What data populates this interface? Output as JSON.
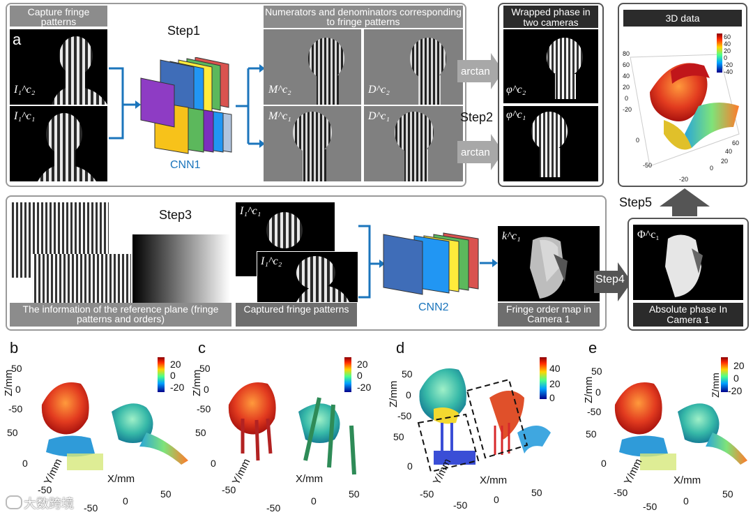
{
  "top": {
    "panel_letter": "a",
    "capture_title": "Capture fringe patterns",
    "step1": "Step1",
    "cnn1": "CNN1",
    "numden_title": "Numerators and denominators corresponding to fringe patterns",
    "wrapped_title": "Wrapped phase in two cameras",
    "step2": "Step2",
    "arctan": "arctan",
    "data3d_title": "3D data",
    "symbols": {
      "I_c2": "I₁^c₂",
      "I_c1": "I₁^c₁",
      "M_c2": "M^c₂",
      "D_c2": "D^c₂",
      "M_c1": "M^c₁",
      "D_c1": "D^c₁",
      "phi_c2": "φ^c₂",
      "phi_c1": "φ^c₁"
    },
    "colorbar_ticks": [
      "60",
      "40",
      "20",
      "0",
      "-20",
      "-40"
    ],
    "axis_ticks": [
      "80",
      "60",
      "40",
      "20",
      "0",
      "-20",
      "-50",
      "0",
      "-20",
      "0",
      "20",
      "40",
      "60"
    ]
  },
  "middle": {
    "step3": "Step3",
    "reference_title": "The information of the reference plane (fringe patterns and orders)",
    "captured_title": "Captured fringe patterns",
    "cnn2": "CNN2",
    "fringe_order_title": "Fringe order map in Camera 1",
    "step4": "Step4",
    "step5": "Step5",
    "absolute_title": "Absolute phase In Camera 1",
    "symbols": {
      "I_c1": "I₁^c₁",
      "I_c2": "I₁^c₂",
      "k_c1": "k^c₁",
      "Phi_c1": "Φ^c₁"
    }
  },
  "bottom": [
    {
      "letter": "b",
      "colorbar": [
        "20",
        "0",
        "-20"
      ],
      "z": "Z/mm",
      "y": "Y/mm",
      "x": "X/mm",
      "zticks": [
        "50",
        "0",
        "-50"
      ],
      "yticks": [
        "50",
        "0",
        "-50"
      ],
      "xticks": [
        "-50",
        "0",
        "50"
      ]
    },
    {
      "letter": "c",
      "colorbar": [
        "20",
        "0",
        "-20"
      ],
      "z": "Z/mm",
      "y": "Y/mm",
      "x": "X/mm",
      "zticks": [
        "50",
        "0",
        "-50"
      ],
      "yticks": [
        "50",
        "0",
        "-50"
      ],
      "xticks": [
        "-50",
        "0",
        "50"
      ]
    },
    {
      "letter": "d",
      "colorbar": [
        "40",
        "20",
        "0"
      ],
      "z": "Z/mm",
      "y": "Y/mm",
      "x": "X/mm",
      "zticks": [
        "50",
        "0",
        "-50"
      ],
      "yticks": [
        "50",
        "0",
        "-50"
      ],
      "xticks": [
        "-50",
        "0",
        "50"
      ]
    },
    {
      "letter": "e",
      "colorbar": [
        "20",
        "0",
        "-20"
      ],
      "z": "Z/mm",
      "y": "Y/mm",
      "x": "X/mm",
      "zticks": [
        "50",
        "0",
        "-50"
      ],
      "yticks": [
        "50",
        "0",
        "-50"
      ],
      "xticks": [
        "-50",
        "0",
        "50"
      ],
      "colorbar_label": "Z/mm"
    }
  ],
  "watermark": "大数跨境"
}
